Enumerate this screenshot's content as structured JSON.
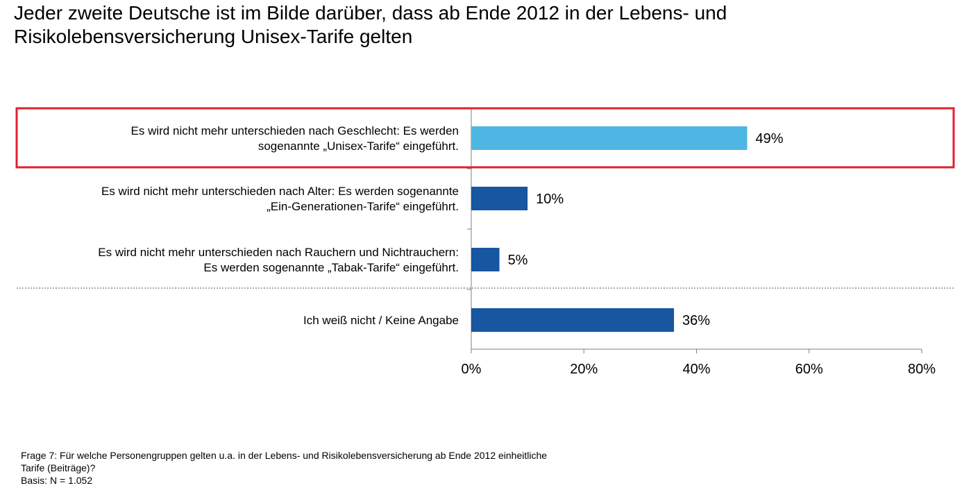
{
  "title_lines": [
    "Jeder zweite Deutsche ist im Bilde darüber, dass ab Ende 2012 in der Lebens- und",
    "Risikolebensversicherung Unisex-Tarife gelten"
  ],
  "chart_data": {
    "type": "bar",
    "orientation": "horizontal",
    "categories": [
      [
        "Es wird nicht mehr unterschieden nach Geschlecht: Es werden",
        "sogenannte „Unisex-Tarife“ eingeführt."
      ],
      [
        "Es wird nicht mehr unterschieden nach Alter: Es werden sogenannte",
        "„Ein-Generationen-Tarife“ eingeführt."
      ],
      [
        "Es wird nicht mehr unterschieden nach Rauchern und Nichtrauchern:",
        "Es werden sogenannte „Tabak-Tarife“ eingeführt."
      ],
      [
        "Ich weiß nicht / Keine Angabe"
      ]
    ],
    "values": [
      49,
      10,
      5,
      36
    ],
    "value_labels": [
      "49%",
      "10%",
      "5%",
      "36%"
    ],
    "xlim": [
      0,
      80
    ],
    "x_ticks": [
      0,
      20,
      40,
      60,
      80
    ],
    "x_tick_labels": [
      "0%",
      "20%",
      "40%",
      "60%",
      "80%"
    ],
    "highlighted_index": 0,
    "colors": {
      "highlight_bar": "#4EB6E3",
      "bar": "#1756A0",
      "highlight_box": "#E2202D",
      "axis": "#7F7F7F",
      "separator": "#555555"
    }
  },
  "footnote_lines": [
    "Frage 7: Für welche Personengruppen gelten u.a. in der Lebens- und Risikolebensversicherung ab Ende 2012 einheitliche",
    "Tarife (Beiträge)?",
    "Basis: N = 1.052"
  ]
}
